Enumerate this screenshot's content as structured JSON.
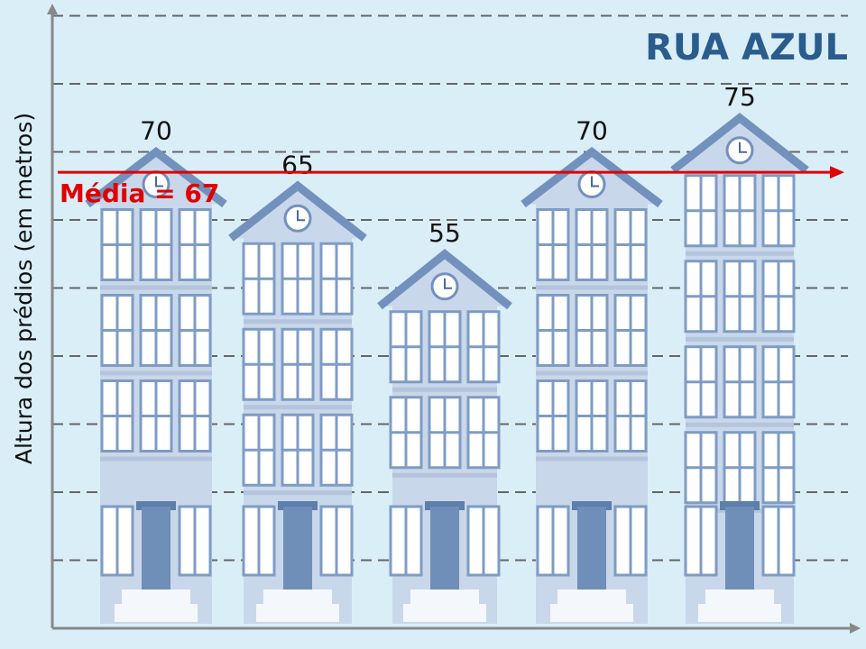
{
  "chart_data": {
    "type": "pictogram",
    "title": "RUA AZUL",
    "y_label": "Altura dos prédios (em metros)",
    "categories": [
      null,
      null,
      null,
      null,
      null
    ],
    "values": [
      70,
      65,
      55,
      70,
      75
    ],
    "color": "#c9d7ea",
    "ylim": [
      0,
      90
    ],
    "yticks": [
      10,
      20,
      30,
      40,
      50,
      60,
      70,
      80,
      90
    ],
    "grid": true,
    "mean": {
      "value": 67,
      "label": "Média = 67",
      "color": "#e00000"
    }
  }
}
